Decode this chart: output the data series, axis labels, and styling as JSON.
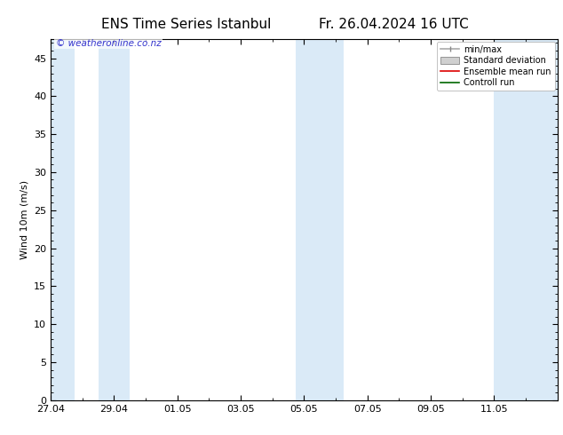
{
  "title_left": "ENS Time Series Istanbul",
  "title_right": "Fr. 26.04.2024 16 UTC",
  "ylabel": "Wind 10m (m/s)",
  "watermark": "© weatheronline.co.nz",
  "bg_color": "#ffffff",
  "plot_bg_color": "#ffffff",
  "band_color": "#daeaf7",
  "ylim": [
    0,
    47.5
  ],
  "yticks": [
    0,
    5,
    10,
    15,
    20,
    25,
    30,
    35,
    40,
    45
  ],
  "xmin": 0.0,
  "xmax": 16.0,
  "xtick_positions": [
    0,
    2,
    4,
    6,
    8,
    10,
    12,
    14
  ],
  "xtick_labels": [
    "27.04",
    "29.04",
    "01.05",
    "03.05",
    "05.05",
    "07.05",
    "09.05",
    "11.05"
  ],
  "shade_bands": [
    [
      0.0,
      0.75
    ],
    [
      1.5,
      2.5
    ],
    [
      7.75,
      9.25
    ],
    [
      14.0,
      16.0
    ]
  ],
  "legend_items": [
    {
      "label": "min/max",
      "color": "#b8d4ea",
      "type": "errorbar"
    },
    {
      "label": "Standard deviation",
      "color": "#c8c8c8",
      "type": "box"
    },
    {
      "label": "Ensemble mean run",
      "color": "#dd0000",
      "type": "line"
    },
    {
      "label": "Controll run",
      "color": "#006600",
      "type": "line"
    }
  ],
  "title_fontsize": 11,
  "axis_fontsize": 8,
  "tick_fontsize": 8,
  "watermark_color": "#3333cc",
  "watermark_fontsize": 7.5,
  "legend_fontsize": 7
}
